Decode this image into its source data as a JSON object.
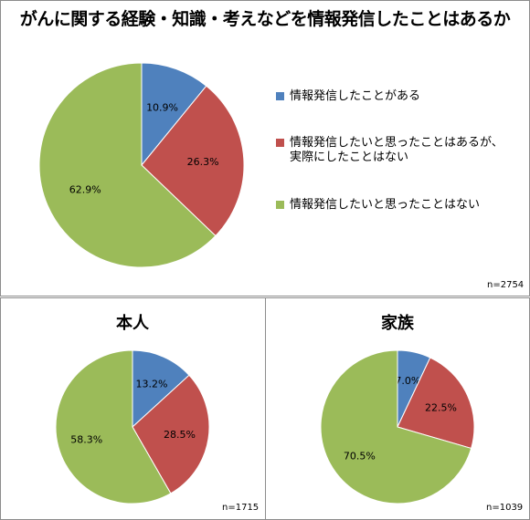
{
  "title": "がんに関する経験・知識・考えなどを情報発信したことはあるか",
  "legend": [
    {
      "label": "情報発信したことがある",
      "color": "#4f81bd"
    },
    {
      "label": "情報発信したいと思ったことはあるが、実際にしたことはない",
      "color": "#c0504d"
    },
    {
      "label": "情報発信したいと思ったことはない",
      "color": "#9bbb59"
    }
  ],
  "chart_data": [
    {
      "type": "pie",
      "title": "",
      "n_label": "n=2754",
      "values": [
        10.9,
        26.3,
        62.9
      ],
      "labels": [
        "10.9%",
        "26.3%",
        "62.9%"
      ]
    },
    {
      "type": "pie",
      "title": "本人",
      "n_label": "n=1715",
      "values": [
        13.2,
        28.5,
        58.3
      ],
      "labels": [
        "13.2%",
        "28.5%",
        "58.3%"
      ]
    },
    {
      "type": "pie",
      "title": "家族",
      "n_label": "n=1039",
      "values": [
        7.0,
        22.5,
        70.5
      ],
      "labels": [
        "7.0%",
        "22.5%",
        "70.5%"
      ]
    }
  ]
}
